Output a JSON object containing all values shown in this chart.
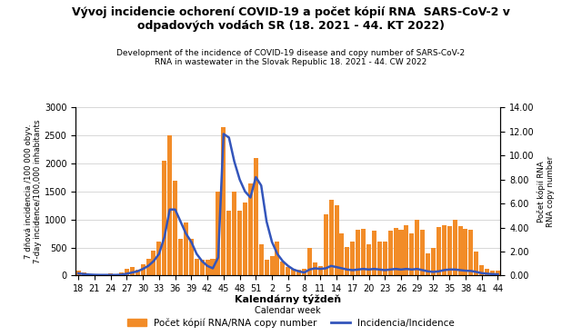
{
  "title_sk": "Vývoj incidencie ochorení COVID-19 a počet kópií RNA  SARS-CoV-2 v\nodpadových vodách SR (18. 2021 - 44. KT 2022)",
  "title_en": "Development of the incidence of COVID-19 disease and copy number of SARS-CoV-2\nRNA in wastewater in the Slovak Republic 18. 2021 - 44. CW 2022",
  "xlabel_sk": "Kalendárny týždeň",
  "xlabel_en": "Calendar week",
  "ylabel_left_sk": "7 dňová incidencia /100 000 obyv.",
  "ylabel_left_en": "7-day incidence/100,000 inhabitants",
  "ylabel_right_sk": "Počet kópií RNA",
  "ylabel_right_en": "RNA copy number",
  "legend_bar": "Počet kópií RNA/RNA copy number",
  "legend_line": "Incidencia/Incidence",
  "bar_color": "#F28C28",
  "line_color": "#3355BB",
  "x_tick_labels": [
    "18",
    "21",
    "24",
    "27",
    "30",
    "33",
    "36",
    "39",
    "42",
    "45",
    "48",
    "51",
    "2",
    "5",
    "8",
    "11",
    "14",
    "17",
    "20",
    "23",
    "26",
    "29",
    "32",
    "35",
    "38",
    "41",
    "44"
  ],
  "x_tick_positions": [
    0,
    3,
    6,
    9,
    12,
    15,
    18,
    21,
    24,
    27,
    30,
    33,
    36,
    39,
    42,
    45,
    48,
    51,
    54,
    57,
    60,
    63,
    66,
    69,
    72,
    75,
    78
  ],
  "bar_values": [
    80,
    50,
    30,
    20,
    25,
    30,
    40,
    30,
    50,
    120,
    150,
    100,
    200,
    300,
    450,
    600,
    2050,
    2500,
    1700,
    660,
    950,
    650,
    300,
    280,
    290,
    300,
    1500,
    2650,
    1150,
    1500,
    1150,
    1300,
    1650,
    2100,
    550,
    280,
    350,
    600,
    250,
    160,
    120,
    100,
    120,
    490,
    230,
    170,
    1100,
    1350,
    1250,
    760,
    510,
    600,
    820,
    830,
    550,
    800,
    600,
    600,
    800,
    850,
    820,
    900,
    750,
    1000,
    820,
    400,
    500,
    870,
    900,
    880,
    1000,
    880,
    830,
    820,
    430,
    180,
    120,
    90,
    80
  ],
  "line_values": [
    0.18,
    0.12,
    0.08,
    0.06,
    0.05,
    0.05,
    0.05,
    0.05,
    0.07,
    0.15,
    0.25,
    0.35,
    0.55,
    0.8,
    1.2,
    1.8,
    3.2,
    5.5,
    5.5,
    4.5,
    3.5,
    2.8,
    1.8,
    1.2,
    0.8,
    0.6,
    1.5,
    11.8,
    11.5,
    9.5,
    8.0,
    7.0,
    6.5,
    8.2,
    7.5,
    4.5,
    2.8,
    1.8,
    1.2,
    0.8,
    0.5,
    0.35,
    0.25,
    0.5,
    0.6,
    0.55,
    0.6,
    0.8,
    0.7,
    0.6,
    0.5,
    0.45,
    0.5,
    0.55,
    0.5,
    0.55,
    0.5,
    0.45,
    0.5,
    0.55,
    0.5,
    0.55,
    0.5,
    0.55,
    0.45,
    0.35,
    0.3,
    0.35,
    0.45,
    0.5,
    0.5,
    0.45,
    0.4,
    0.38,
    0.3,
    0.2,
    0.15,
    0.12,
    0.1
  ],
  "ylim_left": [
    0,
    3000
  ],
  "ylim_right": [
    0,
    14.0
  ],
  "yticks_left": [
    0,
    500,
    1000,
    1500,
    2000,
    2500,
    3000
  ],
  "yticks_right": [
    0.0,
    2.0,
    4.0,
    6.0,
    8.0,
    10.0,
    12.0,
    14.0
  ],
  "bg_color": "#FFFFFF",
  "grid_color": "#C8C8C8"
}
